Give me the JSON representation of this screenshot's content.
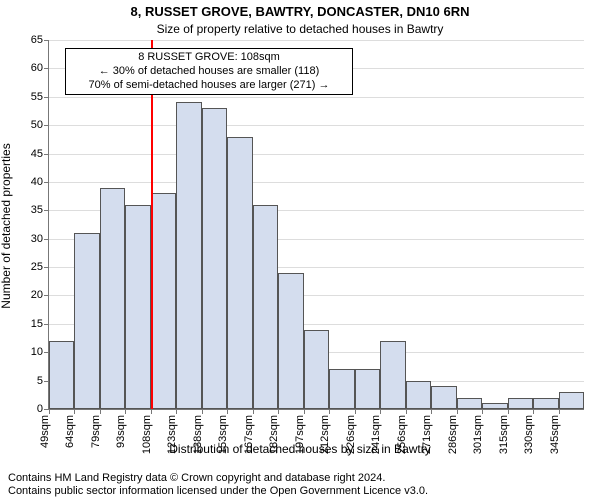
{
  "title": "8, RUSSET GROVE, BAWTRY, DONCASTER, DN10 6RN",
  "subtitle": "Size of property relative to detached houses in Bawtry",
  "ylabel": "Number of detached properties",
  "xlabel": "Distribution of detached houses by size in Bawtry",
  "fontsizes": {
    "title": 13,
    "subtitle": 12,
    "axis_label": 12,
    "tick": 11,
    "annotation": 11,
    "footer": 11
  },
  "histogram": {
    "type": "histogram",
    "ylim": [
      0,
      65
    ],
    "ytick_step": 5,
    "xtick_labels": [
      "49sqm",
      "64sqm",
      "79sqm",
      "93sqm",
      "108sqm",
      "123sqm",
      "138sqm",
      "153sqm",
      "167sqm",
      "182sqm",
      "197sqm",
      "212sqm",
      "226sqm",
      "241sqm",
      "256sqm",
      "271sqm",
      "286sqm",
      "301sqm",
      "315sqm",
      "330sqm",
      "345sqm"
    ],
    "values": [
      12,
      31,
      39,
      36,
      38,
      54,
      53,
      48,
      36,
      24,
      14,
      7,
      7,
      12,
      5,
      4,
      2,
      1,
      2,
      2,
      3
    ],
    "bar_fill": "#d4ddee",
    "bar_border": "#555555",
    "grid_color": "#dddddd",
    "background": "#ffffff",
    "reference_line": {
      "position_index": 4.0,
      "color": "#ff0000",
      "width": 2
    },
    "annotation": {
      "line1": "8 RUSSET GROVE: 108sqm",
      "line2": "← 30% of detached houses are smaller (118)",
      "line3": "70% of semi-detached houses are larger (271) →",
      "border_color": "#000000",
      "bg_color": "#ffffff"
    }
  },
  "footer_line1": "Contains HM Land Registry data © Crown copyright and database right 2024.",
  "footer_line2": "Contains public sector information licensed under the Open Government Licence v3.0."
}
